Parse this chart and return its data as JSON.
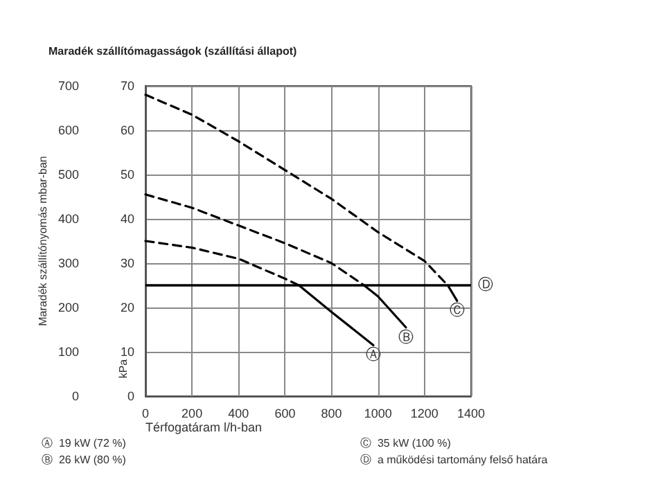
{
  "chart_data": {
    "type": "line",
    "title": "Maradék szállítómagasságok (szállítási állapot)",
    "xlabel": "Térfogatáram l/h-ban",
    "ylabel": "Maradék szállítónyomás mbar-ban",
    "y2label": "kPa",
    "xlim": [
      0,
      1400
    ],
    "xticks": [
      0,
      200,
      400,
      600,
      800,
      1000,
      1200,
      1400
    ],
    "ylim": [
      0,
      700
    ],
    "yticks": [
      0,
      100,
      200,
      300,
      400,
      500,
      600,
      700
    ],
    "y2lim": [
      0,
      70
    ],
    "y2ticks": [
      0,
      10,
      20,
      30,
      40,
      50,
      60,
      70
    ],
    "grid": true,
    "legend": false,
    "marker": "none",
    "series": [
      {
        "color": "#000000",
        "line_style": "dashed",
        "x": [
          0,
          200,
          400,
          600,
          660
        ],
        "values": [
          350,
          335,
          310,
          265,
          250
        ]
      },
      {
        "name": "Ⓐ",
        "color": "#000000",
        "line_style": "solid",
        "x": [
          660,
          800,
          980
        ],
        "values": [
          250,
          190,
          115
        ]
      },
      {
        "color": "#000000",
        "line_style": "dashed",
        "x": [
          0,
          200,
          400,
          600,
          800,
          940
        ],
        "values": [
          455,
          425,
          385,
          345,
          300,
          250
        ]
      },
      {
        "name": "Ⓑ",
        "color": "#000000",
        "line_style": "solid",
        "x": [
          940,
          1000,
          1120
        ],
        "values": [
          250,
          225,
          155
        ]
      },
      {
        "color": "#000000",
        "line_style": "dashed",
        "x": [
          0,
          200,
          400,
          600,
          800,
          1000,
          1200,
          1300
        ],
        "values": [
          680,
          635,
          575,
          510,
          445,
          370,
          305,
          250
        ]
      },
      {
        "name": "Ⓒ",
        "color": "#000000",
        "line_style": "solid",
        "x": [
          1300,
          1340
        ],
        "values": [
          250,
          215
        ]
      }
    ],
    "ref_lines": [
      {
        "axis": "y",
        "value": 250,
        "label": "Ⓓ",
        "color": "#000000",
        "line_style": "solid"
      }
    ],
    "annotations": [
      "Ⓐ  19 kW (72 %)",
      "Ⓑ  26 kW (80 %)",
      "Ⓒ  35 kW (100 %)",
      "Ⓓ  a működési tartomány felső határa"
    ]
  }
}
